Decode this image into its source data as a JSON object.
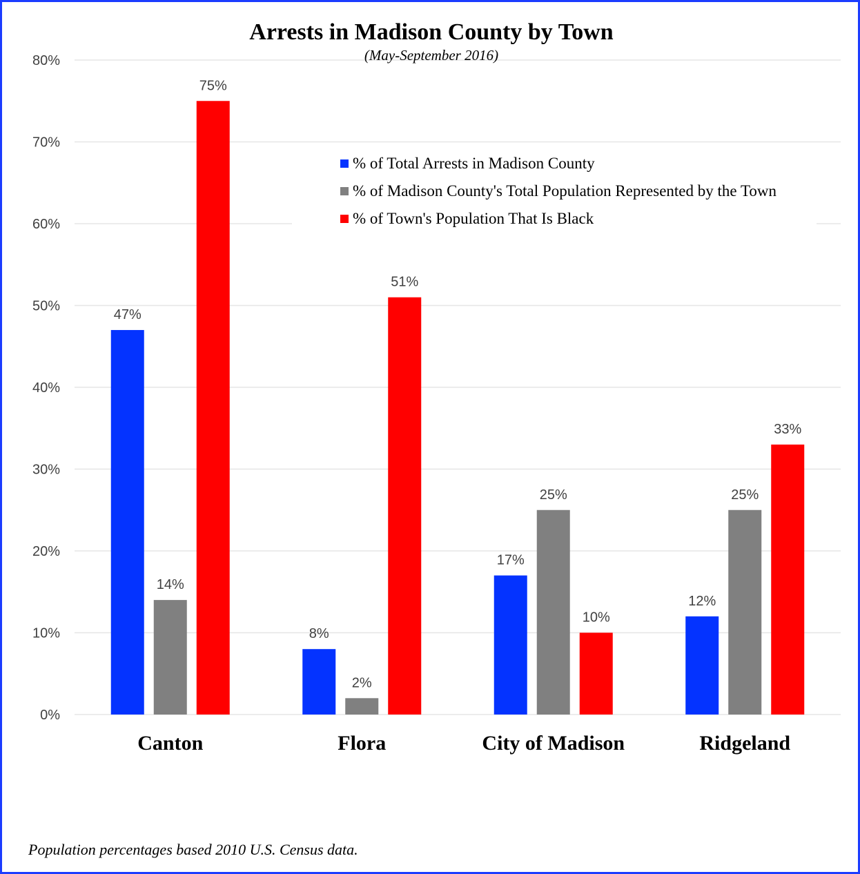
{
  "chart_data": {
    "type": "bar",
    "title": "Arrests in Madison County by Town",
    "subtitle": "(May-September 2016)",
    "categories": [
      "Canton",
      "Flora",
      "City of Madison",
      "Ridgeland"
    ],
    "series": [
      {
        "name": "% of Total Arrests in Madison County",
        "color": "#0433ff",
        "values": [
          47,
          8,
          17,
          12
        ]
      },
      {
        "name": "% of Madison County's Total Population Represented by the Town",
        "color": "#808080",
        "values": [
          14,
          2,
          25,
          25
        ]
      },
      {
        "name": "% of Town's Population That Is Black",
        "color": "#ff0000",
        "values": [
          75,
          51,
          10,
          33
        ]
      }
    ],
    "ylim": [
      0,
      80
    ],
    "yticks": [
      0,
      10,
      20,
      30,
      40,
      50,
      60,
      70,
      80
    ],
    "value_suffix": "%",
    "grid": true,
    "legend_position": "top-right"
  },
  "footnote": "Population percentages based 2010 U.S. Census data."
}
